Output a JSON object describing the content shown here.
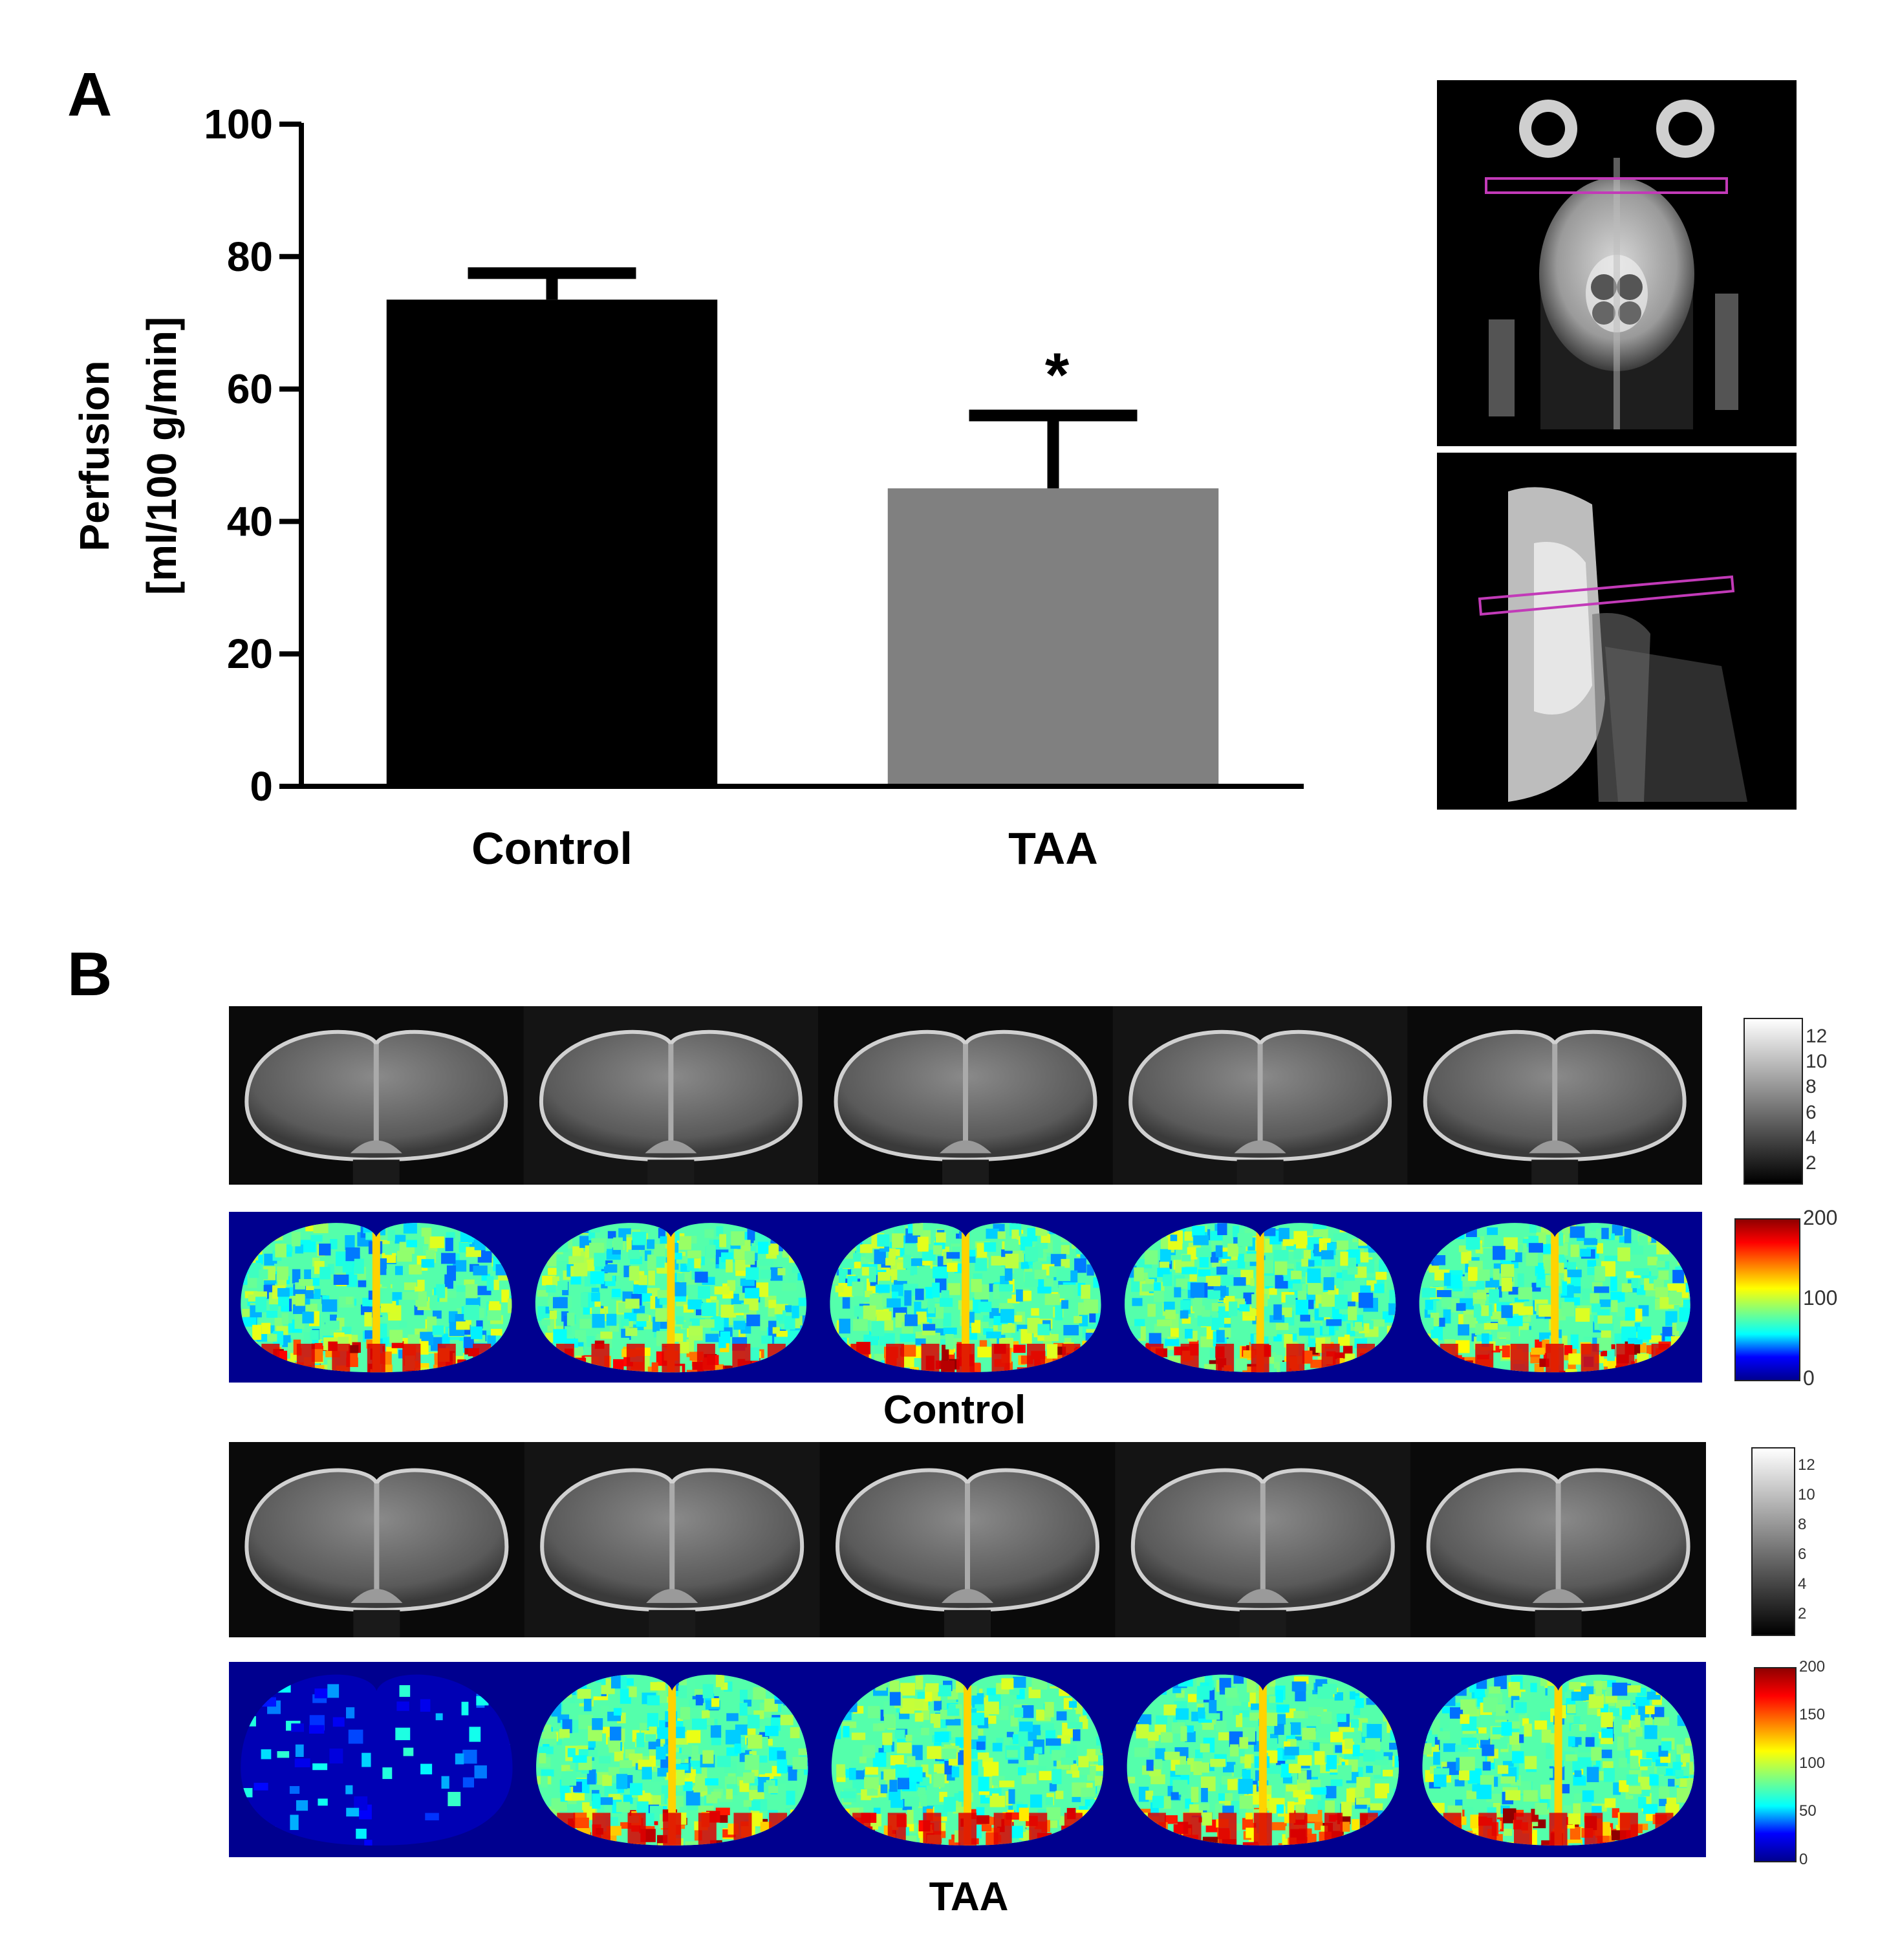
{
  "panels": {
    "a_label": "A",
    "b_label": "B"
  },
  "chart_data": {
    "type": "bar",
    "categories": [
      "Control",
      "TAA"
    ],
    "values": [
      73.5,
      45
    ],
    "errors": [
      4,
      11
    ],
    "bar_colors": [
      "#000000",
      "#808080"
    ],
    "significance": [
      "",
      "*"
    ],
    "ylabel_line1": "Perfusion",
    "ylabel_line2": "[ml/100 g/min]",
    "ylim": [
      0,
      100
    ],
    "yticks": [
      "0",
      "20",
      "40",
      "60",
      "80",
      "100"
    ],
    "grid": false
  },
  "panel_b": {
    "control_label": "Control",
    "taa_label": "TAA",
    "control_gray_ticks": [
      "12",
      "10",
      "8",
      "6",
      "4",
      "2"
    ],
    "control_color_ticks": [
      "200",
      "100",
      "0"
    ],
    "taa_gray_ticks": [
      "12",
      "10",
      "8",
      "6",
      "4",
      "2"
    ],
    "taa_color_ticks": [
      "200",
      "150",
      "100",
      "50",
      "0"
    ],
    "colormap": [
      "#00008f",
      "#0000ff",
      "#00ffff",
      "#7fff7f",
      "#ffff00",
      "#ff7f00",
      "#ff0000",
      "#8f0000"
    ]
  }
}
